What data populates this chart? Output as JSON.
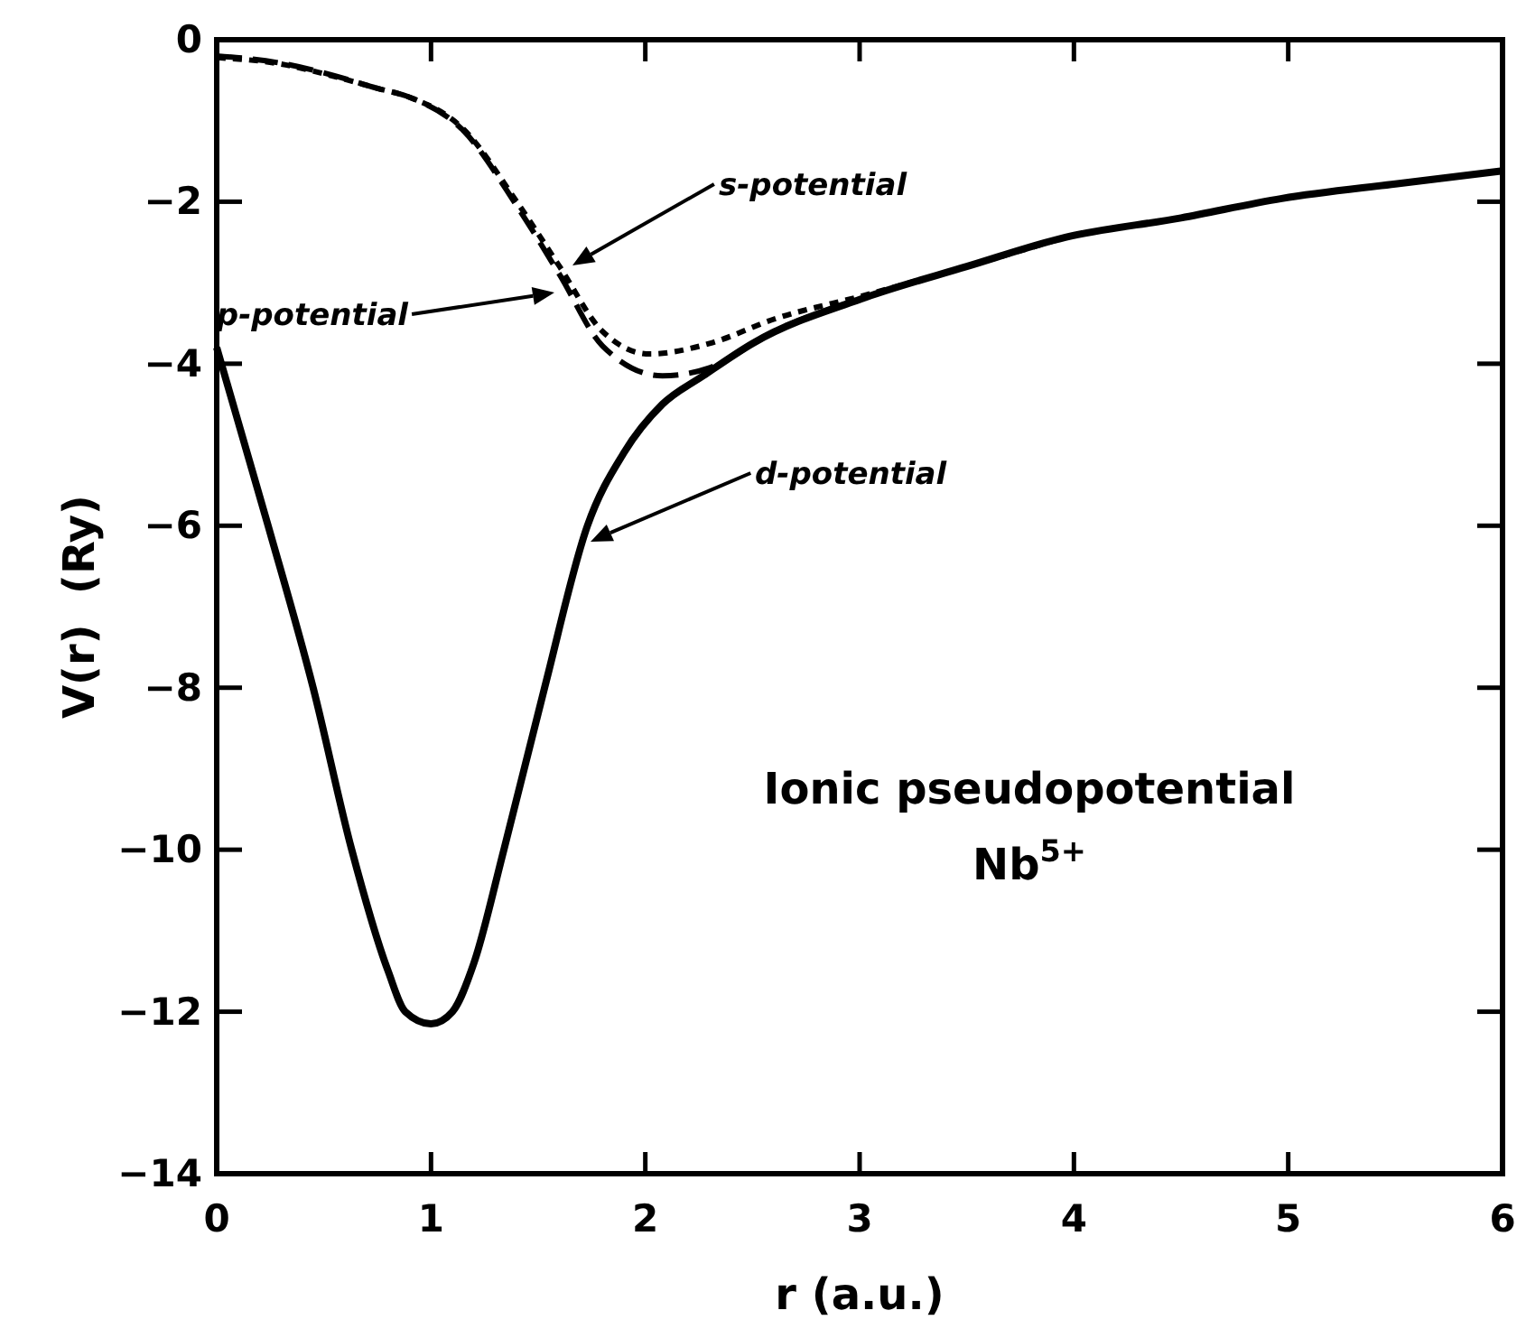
{
  "chart_data": {
    "type": "line",
    "xlabel": "r (a.u.)",
    "ylabel": "V(r)  (Ry)",
    "xlim": [
      0,
      6
    ],
    "xticks": [
      0,
      1,
      2,
      3,
      4,
      5,
      6
    ],
    "ylim": [
      -14,
      0
    ],
    "yticks": [
      0,
      {
        "value": -2,
        "label": "−2"
      },
      {
        "value": -4,
        "label": "−4"
      },
      {
        "value": -6,
        "label": "−6"
      },
      {
        "value": -8,
        "label": "−8"
      },
      {
        "value": -10,
        "label": "−10"
      },
      {
        "value": -12,
        "label": "−12"
      },
      {
        "value": -14,
        "label": "−14"
      }
    ],
    "grid": false,
    "series": [
      {
        "color": "#000000",
        "line_style": "solid",
        "x": [
          0,
          0.24,
          0.45,
          0.63,
          0.8,
          0.88,
          1.0,
          1.1,
          1.2,
          1.34,
          1.53,
          1.73,
          1.9,
          2.08,
          2.27,
          2.5,
          3.03,
          3.5,
          3.96,
          4.5,
          4.97,
          5.5,
          6.0
        ],
        "values": [
          -3.8,
          -6,
          -8,
          -10,
          -11.5,
          -12,
          -12.15,
          -12,
          -11.4,
          -10,
          -8,
          -6,
          -5.1,
          -4.5,
          -4.15,
          -3.75,
          -3.18,
          -2.8,
          -2.44,
          -2.2,
          -1.96,
          -1.78,
          -1.62
        ]
      },
      {
        "color": "#000000",
        "line_style": "dotted",
        "x": [
          0,
          0.3,
          0.53,
          0.75,
          0.9,
          1.15,
          1.4,
          1.6,
          1.8,
          2.02,
          2.3,
          2.6,
          3.03,
          3.5,
          3.96
        ],
        "values": [
          -0.22,
          -0.3,
          -0.44,
          -0.6,
          -0.71,
          -1.1,
          -2.0,
          -2.8,
          -3.6,
          -3.88,
          -3.75,
          -3.45,
          -3.15,
          -2.8,
          -2.44
        ]
      },
      {
        "color": "#000000",
        "line_style": "dashed",
        "x": [
          0,
          0.3,
          0.53,
          0.75,
          0.9,
          1.15,
          1.4,
          1.6,
          1.8,
          2.08,
          2.3,
          2.6,
          3.03,
          3.5
        ],
        "values": [
          -0.2,
          -0.29,
          -0.43,
          -0.6,
          -0.71,
          -1.12,
          -2.05,
          -2.9,
          -3.78,
          -4.15,
          -4.05,
          -3.6,
          -3.18,
          -2.8
        ]
      }
    ],
    "annotations": [
      "s-potential",
      "p-potential",
      "d-potential",
      "Ionic pseudopotential",
      "Nb$^{5+}$"
    ]
  }
}
